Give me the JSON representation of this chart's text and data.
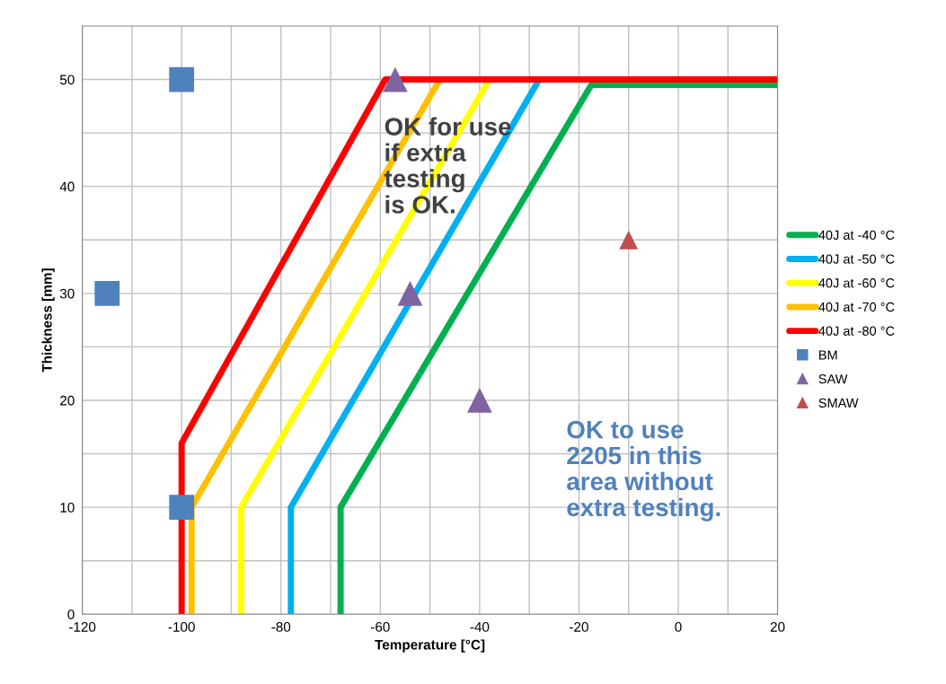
{
  "chart_data": {
    "type": "line",
    "xlabel": "Temperature [°C]",
    "ylabel": "Thickness [mm]",
    "xlim": [
      -120,
      20
    ],
    "ylim": [
      0,
      55
    ],
    "xticks": [
      -120,
      {
        "value": -110,
        "label": null
      },
      -100,
      {
        "value": -90,
        "label": null
      },
      -80,
      {
        "value": -70,
        "label": null
      },
      -60,
      {
        "value": -50,
        "label": null
      },
      -40,
      {
        "value": -30,
        "label": null
      },
      -20,
      {
        "value": -10,
        "label": null
      },
      0,
      {
        "value": 10,
        "label": null
      },
      20
    ],
    "yticks": [
      0,
      {
        "value": 5,
        "label": null
      },
      10,
      {
        "value": 15,
        "label": null
      },
      20,
      {
        "value": 25,
        "label": null
      },
      30,
      {
        "value": 35,
        "label": null
      },
      40,
      {
        "value": 45,
        "label": null
      },
      50
    ],
    "grid": true,
    "legend": "right",
    "series": [
      {
        "name": "40J at -40 °C",
        "marker": "none",
        "color": "#00b050",
        "x": [
          -68,
          -68,
          -17.5,
          20
        ],
        "values": [
          0,
          10,
          49.5,
          49.5
        ]
      },
      {
        "name": "40J at -50 °C",
        "marker": "none",
        "color": "#00b0f0",
        "x": [
          -78,
          -78,
          -28
        ],
        "values": [
          0,
          10,
          50
        ]
      },
      {
        "name": "40J at -60 °C",
        "marker": "none",
        "color": "#ffff00",
        "x": [
          -88,
          -88,
          -38
        ],
        "values": [
          0,
          10,
          50
        ]
      },
      {
        "name": "40J at -70 °C",
        "marker": "none",
        "color": "#ffc000",
        "x": [
          -98,
          -98,
          -48
        ],
        "values": [
          0,
          10,
          50
        ]
      },
      {
        "name": "40J at -80 °C",
        "marker": "none",
        "color": "#ff0000",
        "x": [
          -100,
          -100,
          -59,
          20
        ],
        "values": [
          0,
          16,
          50,
          50
        ]
      },
      {
        "name": "BM",
        "type": "scatter",
        "marker": "square",
        "color": "#4f81bd",
        "x": [
          -100,
          -115,
          -100
        ],
        "values": [
          50,
          30,
          10
        ]
      },
      {
        "name": "SAW",
        "type": "scatter",
        "marker": "triangle",
        "color": "#8064a2",
        "x": [
          -57,
          -54,
          -40
        ],
        "values": [
          50,
          30,
          20
        ]
      },
      {
        "name": "SMAW",
        "type": "scatter",
        "marker": "triangle",
        "color": "#c0504d",
        "x": [
          -10
        ],
        "values": [
          35
        ]
      }
    ],
    "annotations": [
      "OK for use\nif extra\ntesting\nis OK.",
      "OK to use\n2205 in this\narea without\nextra testing."
    ]
  }
}
